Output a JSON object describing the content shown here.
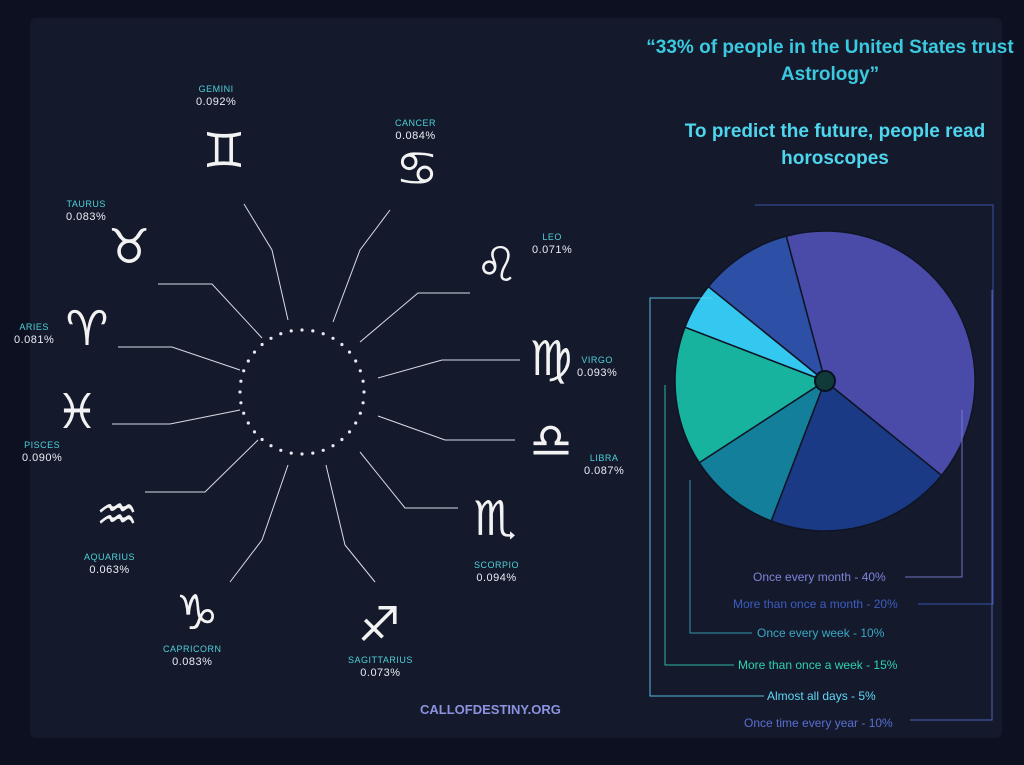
{
  "headline": "“33% of people in the United States trust Astrology”",
  "subheadline": "To predict the future, people read horoscopes",
  "site_credit": "CALLOFDESTINY.ORG",
  "zodiac": {
    "signs": [
      {
        "name": "GEMINI",
        "pct": "0.092%",
        "icon": "gemini-icon",
        "glyph": "♊"
      },
      {
        "name": "CANCER",
        "pct": "0.084%",
        "icon": "cancer-icon",
        "glyph": "♋"
      },
      {
        "name": "LEO",
        "pct": "0.071%",
        "icon": "leo-icon",
        "glyph": "♌"
      },
      {
        "name": "VIRGO",
        "pct": "0.093%",
        "icon": "virgo-icon",
        "glyph": "♍"
      },
      {
        "name": "LIBRA",
        "pct": "0.087%",
        "icon": "libra-icon",
        "glyph": "♎"
      },
      {
        "name": "SCORPIO",
        "pct": "0.094%",
        "icon": "scorpio-icon",
        "glyph": "♏"
      },
      {
        "name": "SAGITTARIUS",
        "pct": "0.073%",
        "icon": "sagittarius-icon",
        "glyph": "♐"
      },
      {
        "name": "CAPRICORN",
        "pct": "0.083%",
        "icon": "capricorn-icon",
        "glyph": "♑"
      },
      {
        "name": "AQUARIUS",
        "pct": "0.063%",
        "icon": "aquarius-icon",
        "glyph": "♒"
      },
      {
        "name": "PISCES",
        "pct": "0.090%",
        "icon": "pisces-icon",
        "glyph": "♓"
      },
      {
        "name": "ARIES",
        "pct": "0.081%",
        "icon": "aries-icon",
        "glyph": "♈"
      },
      {
        "name": "TAURUS",
        "pct": "0.083%",
        "icon": "taurus-icon",
        "glyph": "♉"
      }
    ]
  },
  "chart_data": {
    "type": "pie",
    "title": "",
    "legend_placement": "bottom-left",
    "slices": [
      {
        "label": "Once every month - 40%",
        "value": 40,
        "color": "#4a4aa8"
      },
      {
        "label": "More than once a month - 20%",
        "value": 20,
        "color": "#1a3a86"
      },
      {
        "label": "Once every week - 10%",
        "value": 10,
        "color": "#147f9a"
      },
      {
        "label": "More than once a week - 15%",
        "value": 15,
        "color": "#18b39e"
      },
      {
        "label": "Almost all days - 5%",
        "value": 5,
        "color": "#34c8f0"
      },
      {
        "label": "Once time every year - 10%",
        "value": 10,
        "color": "#2d4fa6"
      }
    ],
    "legend_colors": [
      "#7f83d9",
      "#3d5cbf",
      "#3aa7c3",
      "#2ed0b4",
      "#5fd7f7",
      "#5a6ed0"
    ]
  },
  "colors": {
    "background": "#0f1424",
    "accent": "#3bc9e0",
    "sign_name": "#4fd0d8",
    "connector_line": "#d9dce6"
  }
}
